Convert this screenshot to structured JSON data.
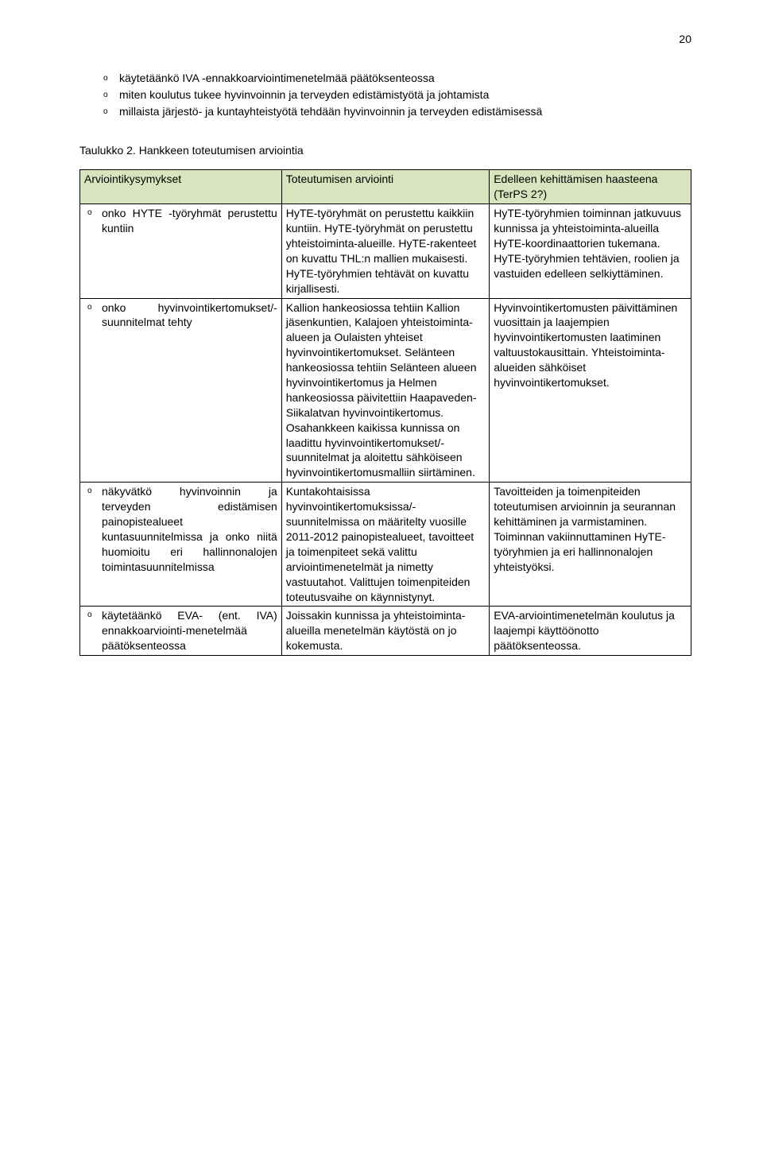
{
  "page_number": "20",
  "intro": {
    "items": [
      "käytetäänkö IVA -ennakkoarviointimenetelmää päätöksenteossa",
      "miten koulutus tukee hyvinvoinnin ja terveyden edistämistyötä ja johtamista",
      "millaista järjestö- ja kuntayhteistyötä tehdään hyvinvoinnin ja terveyden edistämisessä"
    ]
  },
  "table_caption": "Taulukko 2. Hankkeen toteutumisen arviointia",
  "colors": {
    "header_bg": "#d7e4bd",
    "border": "#000000",
    "text": "#000000",
    "background": "#ffffff"
  },
  "table": {
    "headers": [
      "Arviointikysymykset",
      "Toteutumisen arviointi",
      "Edelleen kehittämisen haasteena (TerPS 2?)"
    ],
    "rows": [
      {
        "q": "onko HYTE -työryhmät perustettu kuntiin",
        "a": "HyTE-työryhmät on perustettu kaikkiin kuntiin. HyTE-työryhmät on perustettu yhteistoiminta-alueille. HyTE-rakenteet on kuvattu THL:n mallien mukaisesti. HyTE-työryhmien tehtävät on kuvattu kirjallisesti.",
        "c": "HyTE-työryhmien toiminnan jatkuvuus kunnissa ja yhteistoiminta-alueilla HyTE-koordinaattorien tukemana. HyTE-työryhmien tehtävien, roolien ja vastuiden edelleen selkiyttäminen."
      },
      {
        "q": "onko hyvinvointikertomukset/-suunnitelmat tehty",
        "a": "Kallion hankeosiossa tehtiin Kallion jäsenkuntien, Kalajoen yhteistoiminta-alueen ja Oulaisten yhteiset hyvinvointikertomukset. Selänteen hankeosiossa tehtiin Selänteen alueen hyvinvointikertomus ja Helmen hankeosiossa päivitettiin Haapaveden-Siikalatvan hyvinvointikertomus. Osahankkeen kaikissa kunnissa on laadittu hyvinvointikertomukset/-suunnitelmat ja aloitettu sähköiseen hyvinvointikertomusmalliin siirtäminen.",
        "c": "Hyvinvointikertomusten päivittäminen vuosittain ja laajempien hyvinvointikertomusten laatiminen valtuustokausittain. Yhteistoiminta-alueiden sähköiset hyvinvointikertomukset."
      },
      {
        "q": "näkyvätkö hyvinvoinnin ja terveyden edistämisen painopistealueet kuntasuunnitelmissa ja onko niitä huomioitu eri hallinnonalojen toimintasuunnitelmissa",
        "a": "Kuntakohtaisissa hyvinvointikertomuksissa/-suunnitelmissa on määritelty vuosille 2011-2012 painopistealueet, tavoitteet ja toimenpiteet sekä valittu arviointimenetelmät ja nimetty vastuutahot. Valittujen toimenpiteiden toteutusvaihe on käynnistynyt.",
        "c": "Tavoitteiden ja toimenpiteiden toteutumisen arvioinnin ja seurannan kehittäminen ja varmistaminen. Toiminnan vakiinnuttaminen HyTE-työryhmien ja eri hallinnonalojen yhteistyöksi."
      },
      {
        "q": "käytetäänkö EVA- (ent. IVA) ennakkoarviointi-menetelmää päätöksenteossa",
        "a": "Joissakin kunnissa ja yhteistoiminta-alueilla menetelmän käytöstä on jo kokemusta.",
        "c": "EVA-arviointimenetelmän koulutus ja laajempi käyttöönotto päätöksenteossa."
      }
    ]
  }
}
